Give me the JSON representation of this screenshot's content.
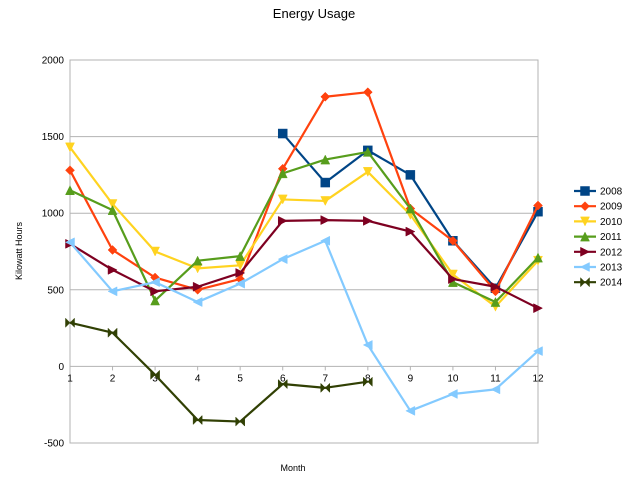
{
  "chart_data": {
    "type": "line",
    "title": "Energy Usage",
    "xlabel": "Month",
    "ylabel": "Kilowatt Hours",
    "x": [
      1,
      2,
      3,
      4,
      5,
      6,
      7,
      8,
      9,
      10,
      11,
      12
    ],
    "xlim": [
      1,
      12
    ],
    "ylim": [
      -500,
      2000
    ],
    "yticks": [
      -500,
      0,
      500,
      1000,
      1500,
      2000
    ],
    "grid": true,
    "legend_position": "right",
    "series": [
      {
        "name": "2008",
        "color": "#004586",
        "marker": "square",
        "values": [
          null,
          null,
          null,
          null,
          null,
          1520,
          1200,
          1410,
          1250,
          820,
          510,
          1010
        ]
      },
      {
        "name": "2009",
        "color": "#ff420e",
        "marker": "diamond",
        "values": [
          1280,
          760,
          580,
          500,
          570,
          1290,
          1760,
          1790,
          1030,
          820,
          490,
          1050
        ]
      },
      {
        "name": "2010",
        "color": "#ffd320",
        "marker": "triangle-down",
        "values": [
          1430,
          1060,
          750,
          640,
          660,
          1090,
          1080,
          1270,
          990,
          600,
          390,
          690
        ]
      },
      {
        "name": "2011",
        "color": "#579d1c",
        "marker": "triangle-up",
        "values": [
          1150,
          1020,
          430,
          690,
          720,
          1260,
          1350,
          1400,
          1030,
          550,
          420,
          710
        ]
      },
      {
        "name": "2012",
        "color": "#7e0021",
        "marker": "triangle-right",
        "values": [
          800,
          630,
          490,
          520,
          610,
          950,
          955,
          950,
          880,
          570,
          520,
          380
        ]
      },
      {
        "name": "2013",
        "color": "#83caff",
        "marker": "triangle-left",
        "values": [
          810,
          490,
          550,
          420,
          540,
          700,
          820,
          140,
          -290,
          -180,
          -150,
          100
        ]
      },
      {
        "name": "2014",
        "color": "#314004",
        "marker": "bowtie",
        "values": [
          285,
          220,
          -55,
          -350,
          -360,
          -115,
          -140,
          -100,
          null,
          null,
          null,
          null
        ]
      }
    ]
  }
}
